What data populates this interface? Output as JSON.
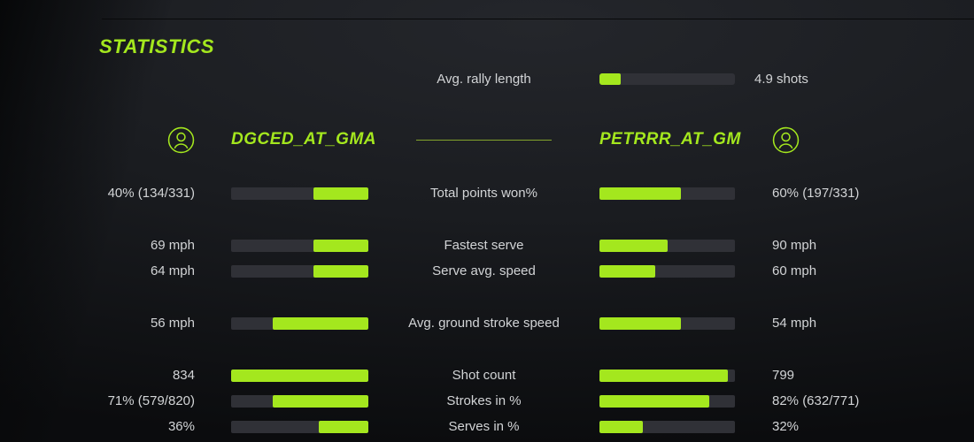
{
  "colors": {
    "accent": "#a4e71e",
    "divider": "#84a42c",
    "track": "#303137",
    "text": "#d2d4d6",
    "background_top": "#24262b",
    "background_edge": "#0b0c0e"
  },
  "title": "STATISTICS",
  "rally": {
    "label": "Avg. rally length",
    "value": "4.9 shots",
    "fill_pct": 16
  },
  "players": {
    "left": {
      "name": "DGCED_AT_GMA",
      "icon": "person-icon"
    },
    "right": {
      "name": "PETRRR_AT_GM",
      "icon": "person-icon"
    }
  },
  "stats": [
    {
      "label": "Total points won%",
      "left_value": "40% (134/331)",
      "left_fill_pct": 40,
      "right_value": "60% (197/331)",
      "right_fill_pct": 60,
      "group_start": false
    },
    {
      "label": "Fastest serve",
      "left_value": "69 mph",
      "left_fill_pct": 40,
      "right_value": "90 mph",
      "right_fill_pct": 50,
      "group_start": true
    },
    {
      "label": "Serve avg. speed",
      "left_value": "64 mph",
      "left_fill_pct": 40,
      "right_value": "60 mph",
      "right_fill_pct": 41,
      "group_start": false
    },
    {
      "label": "Avg. ground stroke speed",
      "left_value": "56 mph",
      "left_fill_pct": 70,
      "right_value": "54 mph",
      "right_fill_pct": 60,
      "group_start": true
    },
    {
      "label": "Shot count",
      "left_value": "834",
      "left_fill_pct": 100,
      "right_value": "799",
      "right_fill_pct": 95,
      "group_start": true
    },
    {
      "label": "Strokes in %",
      "left_value": "71% (579/820)",
      "left_fill_pct": 70,
      "right_value": "82% (632/771)",
      "right_fill_pct": 81,
      "group_start": false
    },
    {
      "label": "Serves in %",
      "left_value": "36%",
      "left_fill_pct": 36,
      "right_value": "32%",
      "right_fill_pct": 32,
      "group_start": false
    }
  ]
}
